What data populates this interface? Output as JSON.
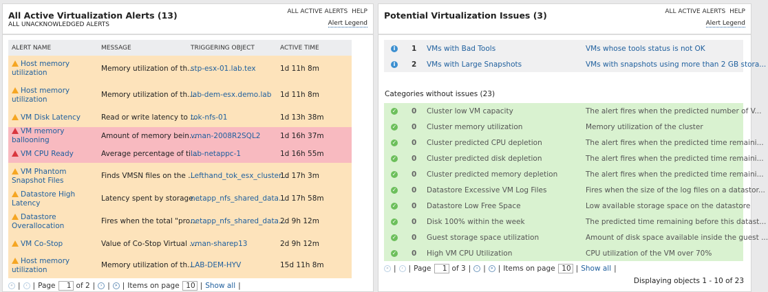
{
  "left": {
    "title": "All Active Virtualization Alerts (13)",
    "subtitle": "ALL UNACKNOWLEDGED ALERTS",
    "links": [
      "ALL ACTIVE ALERTS",
      "HELP"
    ],
    "legend": "Alert Legend",
    "columns": [
      "ALERT NAME",
      "MESSAGE",
      "TRIGGERING OBJECT",
      "ACTIVE TIME"
    ],
    "rows": [
      {
        "severity": "warning",
        "name": "Host memory utilization",
        "message": "Memory utilization of th...",
        "object": "stp-esx-01.lab.tex",
        "time": "1d 11h 8m"
      },
      {
        "severity": "warning",
        "name": "Host memory utilization",
        "message": "Memory utilization of th...",
        "object": "lab-dem-esx.demo.lab",
        "time": "1d 11h 8m"
      },
      {
        "severity": "warning",
        "name": "VM Disk Latency",
        "message": "Read or write latency to ...",
        "object": "tok-nfs-01",
        "time": "1d 13h 38m"
      },
      {
        "severity": "critical",
        "name": "VM memory ballooning",
        "message": "Amount of memory bein...",
        "object": "vman-2008R2SQL2",
        "time": "1d 16h 37m"
      },
      {
        "severity": "critical",
        "name": "VM CPU Ready",
        "message": "Average percentage of ti...",
        "object": "lab-netappc-1",
        "time": "1d 16h 55m"
      },
      {
        "severity": "warning",
        "name": "VM Phantom Snapshot Files",
        "message": "Finds VMSN files on the ...",
        "object": "Lefthand_tok_esx_cluster...",
        "time": "1d 17h 3m"
      },
      {
        "severity": "warning",
        "name": "Datastore High Latency",
        "message": "Latency spent by storage...",
        "object": "netapp_nfs_shared_data...",
        "time": "1d 17h 58m"
      },
      {
        "severity": "warning",
        "name": "Datastore Overallocation",
        "message": "Fires when the total \"pro...",
        "object": "netapp_nfs_shared_data...",
        "time": "2d 9h 12m"
      },
      {
        "severity": "warning",
        "name": "VM Co-Stop",
        "message": "Value of Co-Stop Virtual ...",
        "object": "vman-sharep13",
        "time": "2d 9h 12m"
      },
      {
        "severity": "warning",
        "name": "Host memory utilization",
        "message": "Memory utilization of th...",
        "object": "LAB-DEM-HYV",
        "time": "15d 11h 8m"
      }
    ],
    "pager": {
      "page_label": "Page",
      "page": "1",
      "of": "of 2",
      "items_label": "Items on page",
      "items": "10",
      "show_all": "Show all"
    }
  },
  "right": {
    "title": "Potential Virtualization Issues (3)",
    "links": [
      "ALL ACTIVE ALERTS",
      "HELP"
    ],
    "legend": "Alert Legend",
    "issues": [
      {
        "count": "1",
        "name": "VMs with Bad Tools",
        "description": "VMs whose tools status is not OK"
      },
      {
        "count": "2",
        "name": "VMs with Large Snapshots",
        "description": "VMs with snapshots using more than 2 GB stora..."
      }
    ],
    "categories_heading": "Categories without issues (23)",
    "categories": [
      {
        "count": "0",
        "name": "Cluster low VM capacity",
        "description": "The alert fires when the predicted number of V..."
      },
      {
        "count": "0",
        "name": "Cluster memory utilization",
        "description": "Memory utilization of the cluster"
      },
      {
        "count": "0",
        "name": "Cluster predicted CPU depletion",
        "description": "The alert fires when the predicted time remaini..."
      },
      {
        "count": "0",
        "name": "Cluster predicted disk depletion",
        "description": "The alert fires when the predicted time remaini..."
      },
      {
        "count": "0",
        "name": "Cluster predicted memory depletion",
        "description": "The alert fires when the predicted time remaini..."
      },
      {
        "count": "0",
        "name": "Datastore Excessive VM Log Files",
        "description": "Fires when the size of the log files on a datastor..."
      },
      {
        "count": "0",
        "name": "Datastore Low Free Space",
        "description": "Low available storage space on the datastore"
      },
      {
        "count": "0",
        "name": "Disk 100% within the week",
        "description": "The predicted time remaining before this datast..."
      },
      {
        "count": "0",
        "name": "Guest storage space utilization",
        "description": "Amount of disk space available inside the guest ..."
      },
      {
        "count": "0",
        "name": "High VM CPU Utilization",
        "description": "CPU utilization of the VM over 70%"
      }
    ],
    "pager": {
      "page_label": "Page",
      "page": "1",
      "of": "of 3",
      "items_label": "Items on page",
      "items": "10",
      "show_all": "Show all"
    },
    "displaying": "Displaying objects 1 - 10 of 23"
  },
  "colors": {
    "warning_row": "#fde3bb",
    "critical_row": "#f8bac0",
    "ok_row": "#d9f2d0",
    "link": "#20609e",
    "warning_icon": "#f5a623",
    "critical_icon": "#d9363e",
    "info_icon": "#3b8fd0",
    "ok_icon": "#6cbf5b"
  }
}
